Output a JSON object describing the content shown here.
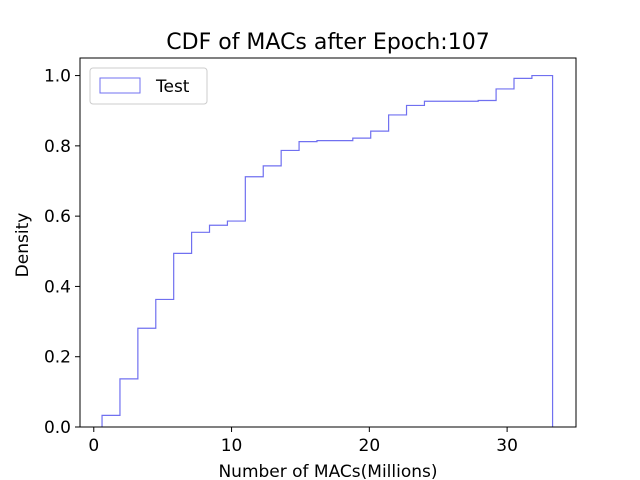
{
  "chart_data": {
    "type": "line",
    "title": "CDF of MACs after Epoch:107",
    "xlabel": "Number of MACs(Millions)",
    "ylabel": "Density",
    "xlim": [
      -1,
      35
    ],
    "ylim": [
      0,
      1.05
    ],
    "xticks": [
      0,
      10,
      20,
      30
    ],
    "yticks": [
      0.0,
      0.2,
      0.4,
      0.6,
      0.8,
      1.0
    ],
    "xtick_labels": [
      "0",
      "10",
      "20",
      "30"
    ],
    "ytick_labels": [
      "0.0",
      "0.2",
      "0.4",
      "0.6",
      "0.8",
      "1.0"
    ],
    "grid": false,
    "legend_position": "top-left",
    "series": [
      {
        "name": "Test",
        "color": "#7070f0",
        "style": "step-cumulative-histogram",
        "bin_edges": [
          0.6,
          1.9,
          3.2,
          4.5,
          5.8,
          7.1,
          8.4,
          9.7,
          11.0,
          12.3,
          13.6,
          14.9,
          16.2,
          17.5,
          18.8,
          20.1,
          21.4,
          22.7,
          24.0,
          25.3,
          26.6,
          27.9,
          29.2,
          30.5,
          31.8,
          33.3
        ],
        "values": [
          0.033,
          0.137,
          0.281,
          0.363,
          0.494,
          0.554,
          0.574,
          0.586,
          0.712,
          0.743,
          0.787,
          0.812,
          0.815,
          0.815,
          0.822,
          0.842,
          0.888,
          0.915,
          0.927,
          0.927,
          0.927,
          0.929,
          0.962,
          0.992,
          1.0
        ]
      }
    ]
  }
}
